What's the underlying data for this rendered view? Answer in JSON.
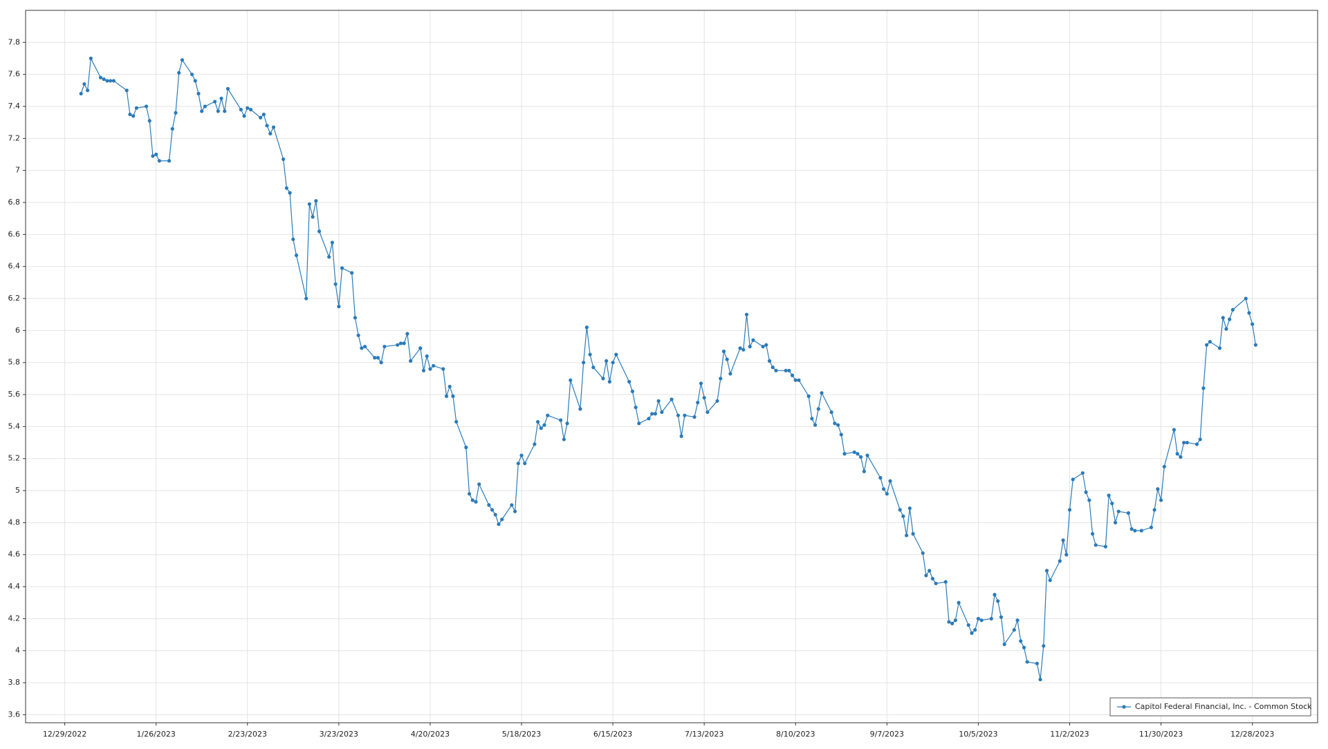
{
  "chart_data": {
    "type": "line",
    "x": [
      "1/3/2023",
      "1/4/2023",
      "1/5/2023",
      "1/6/2023",
      "1/9/2023",
      "1/10/2023",
      "1/11/2023",
      "1/12/2023",
      "1/13/2023",
      "1/17/2023",
      "1/18/2023",
      "1/19/2023",
      "1/20/2023",
      "1/23/2023",
      "1/24/2023",
      "1/25/2023",
      "1/26/2023",
      "1/27/2023",
      "1/30/2023",
      "1/31/2023",
      "2/1/2023",
      "2/2/2023",
      "2/3/2023",
      "2/6/2023",
      "2/7/2023",
      "2/8/2023",
      "2/9/2023",
      "2/10/2023",
      "2/13/2023",
      "2/14/2023",
      "2/15/2023",
      "2/16/2023",
      "2/17/2023",
      "2/21/2023",
      "2/22/2023",
      "2/23/2023",
      "2/24/2023",
      "2/27/2023",
      "2/28/2023",
      "3/1/2023",
      "3/2/2023",
      "3/3/2023",
      "3/6/2023",
      "3/7/2023",
      "3/8/2023",
      "3/9/2023",
      "3/10/2023",
      "3/13/2023",
      "3/14/2023",
      "3/15/2023",
      "3/16/2023",
      "3/17/2023",
      "3/20/2023",
      "3/21/2023",
      "3/22/2023",
      "3/23/2023",
      "3/24/2023",
      "3/27/2023",
      "3/28/2023",
      "3/29/2023",
      "3/30/2023",
      "3/31/2023",
      "4/3/2023",
      "4/4/2023",
      "4/5/2023",
      "4/6/2023",
      "4/10/2023",
      "4/11/2023",
      "4/12/2023",
      "4/13/2023",
      "4/14/2023",
      "4/17/2023",
      "4/18/2023",
      "4/19/2023",
      "4/20/2023",
      "4/21/2023",
      "4/24/2023",
      "4/25/2023",
      "4/26/2023",
      "4/27/2023",
      "4/28/2023",
      "5/1/2023",
      "5/2/2023",
      "5/3/2023",
      "5/4/2023",
      "5/5/2023",
      "5/8/2023",
      "5/9/2023",
      "5/10/2023",
      "5/11/2023",
      "5/12/2023",
      "5/15/2023",
      "5/16/2023",
      "5/17/2023",
      "5/18/2023",
      "5/19/2023",
      "5/22/2023",
      "5/23/2023",
      "5/24/2023",
      "5/25/2023",
      "5/26/2023",
      "5/30/2023",
      "5/31/2023",
      "6/1/2023",
      "6/2/2023",
      "6/5/2023",
      "6/6/2023",
      "6/7/2023",
      "6/8/2023",
      "6/9/2023",
      "6/12/2023",
      "6/13/2023",
      "6/14/2023",
      "6/15/2023",
      "6/16/2023",
      "6/20/2023",
      "6/21/2023",
      "6/22/2023",
      "6/23/2023",
      "6/26/2023",
      "6/27/2023",
      "6/28/2023",
      "6/29/2023",
      "6/30/2023",
      "7/3/2023",
      "7/5/2023",
      "7/6/2023",
      "7/7/2023",
      "7/10/2023",
      "7/11/2023",
      "7/12/2023",
      "7/13/2023",
      "7/14/2023",
      "7/17/2023",
      "7/18/2023",
      "7/19/2023",
      "7/20/2023",
      "7/21/2023",
      "7/24/2023",
      "7/25/2023",
      "7/26/2023",
      "7/27/2023",
      "7/28/2023",
      "7/31/2023",
      "8/1/2023",
      "8/2/2023",
      "8/3/2023",
      "8/4/2023",
      "8/7/2023",
      "8/8/2023",
      "8/9/2023",
      "8/10/2023",
      "8/11/2023",
      "8/14/2023",
      "8/15/2023",
      "8/16/2023",
      "8/17/2023",
      "8/18/2023",
      "8/21/2023",
      "8/22/2023",
      "8/23/2023",
      "8/24/2023",
      "8/25/2023",
      "8/28/2023",
      "8/29/2023",
      "8/30/2023",
      "8/31/2023",
      "9/1/2023",
      "9/5/2023",
      "9/6/2023",
      "9/7/2023",
      "9/8/2023",
      "9/11/2023",
      "9/12/2023",
      "9/13/2023",
      "9/14/2023",
      "9/15/2023",
      "9/18/2023",
      "9/19/2023",
      "9/20/2023",
      "9/21/2023",
      "9/22/2023",
      "9/25/2023",
      "9/26/2023",
      "9/27/2023",
      "9/28/2023",
      "9/29/2023",
      "10/2/2023",
      "10/3/2023",
      "10/4/2023",
      "10/5/2023",
      "10/6/2023",
      "10/9/2023",
      "10/10/2023",
      "10/11/2023",
      "10/12/2023",
      "10/13/2023",
      "10/16/2023",
      "10/17/2023",
      "10/18/2023",
      "10/19/2023",
      "10/20/2023",
      "10/23/2023",
      "10/24/2023",
      "10/25/2023",
      "10/26/2023",
      "10/27/2023",
      "10/30/2023",
      "10/31/2023",
      "11/1/2023",
      "11/2/2023",
      "11/3/2023",
      "11/6/2023",
      "11/7/2023",
      "11/8/2023",
      "11/9/2023",
      "11/10/2023",
      "11/13/2023",
      "11/14/2023",
      "11/15/2023",
      "11/16/2023",
      "11/17/2023",
      "11/20/2023",
      "11/21/2023",
      "11/22/2023",
      "11/24/2023",
      "11/27/2023",
      "11/28/2023",
      "11/29/2023",
      "11/30/2023",
      "12/1/2023",
      "12/4/2023",
      "12/5/2023",
      "12/6/2023",
      "12/7/2023",
      "12/8/2023",
      "12/11/2023",
      "12/12/2023",
      "12/13/2023",
      "12/14/2023",
      "12/15/2023",
      "12/18/2023",
      "12/19/2023",
      "12/20/2023",
      "12/21/2023",
      "12/22/2023",
      "12/26/2023",
      "12/27/2023",
      "12/28/2023",
      "12/29/2023"
    ],
    "series": [
      {
        "name": "Capitol Federal Financial, Inc. - Common Stock",
        "color": "#2a7ab9",
        "values": [
          7.48,
          7.54,
          7.5,
          7.7,
          7.58,
          7.57,
          7.56,
          7.56,
          7.56,
          7.5,
          7.35,
          7.34,
          7.39,
          7.4,
          7.31,
          7.09,
          7.1,
          7.06,
          7.06,
          7.26,
          7.36,
          7.61,
          7.69,
          7.6,
          7.56,
          7.48,
          7.37,
          7.4,
          7.43,
          7.37,
          7.45,
          7.37,
          7.51,
          7.38,
          7.34,
          7.39,
          7.38,
          7.33,
          7.35,
          7.28,
          7.23,
          7.27,
          7.07,
          6.89,
          6.86,
          6.57,
          6.47,
          6.2,
          6.79,
          6.71,
          6.81,
          6.62,
          6.46,
          6.55,
          6.29,
          6.15,
          6.39,
          6.36,
          6.08,
          5.97,
          5.89,
          5.9,
          5.83,
          5.83,
          5.8,
          5.9,
          5.91,
          5.92,
          5.92,
          5.98,
          5.81,
          5.89,
          5.75,
          5.84,
          5.76,
          5.78,
          5.76,
          5.59,
          5.65,
          5.59,
          5.43,
          5.27,
          4.98,
          4.94,
          4.93,
          5.04,
          4.91,
          4.88,
          4.85,
          4.79,
          4.82,
          4.91,
          4.87,
          5.17,
          5.22,
          5.17,
          5.29,
          5.43,
          5.39,
          5.41,
          5.47,
          5.44,
          5.32,
          5.42,
          5.69,
          5.51,
          5.8,
          6.02,
          5.85,
          5.77,
          5.7,
          5.81,
          5.68,
          5.8,
          5.85,
          5.68,
          5.62,
          5.52,
          5.42,
          5.45,
          5.48,
          5.48,
          5.56,
          5.49,
          5.57,
          5.47,
          5.34,
          5.47,
          5.46,
          5.55,
          5.67,
          5.58,
          5.49,
          5.56,
          5.7,
          5.87,
          5.82,
          5.73,
          5.89,
          5.88,
          6.1,
          5.9,
          5.94,
          5.9,
          5.91,
          5.81,
          5.77,
          5.75,
          5.75,
          5.75,
          5.72,
          5.69,
          5.69,
          5.59,
          5.45,
          5.41,
          5.51,
          5.61,
          5.49,
          5.42,
          5.41,
          5.35,
          5.23,
          5.24,
          5.23,
          5.21,
          5.12,
          5.22,
          5.08,
          5.01,
          4.98,
          5.06,
          4.88,
          4.84,
          4.72,
          4.89,
          4.73,
          4.61,
          4.47,
          4.5,
          4.45,
          4.42,
          4.43,
          4.18,
          4.17,
          4.19,
          4.3,
          4.16,
          4.11,
          4.13,
          4.2,
          4.19,
          4.2,
          4.35,
          4.31,
          4.21,
          4.04,
          4.13,
          4.19,
          4.06,
          4.02,
          3.93,
          3.92,
          3.82,
          4.03,
          4.5,
          4.44,
          4.56,
          4.69,
          4.6,
          4.88,
          5.07,
          5.11,
          4.99,
          4.94,
          4.73,
          4.66,
          4.65,
          4.97,
          4.92,
          4.8,
          4.87,
          4.86,
          4.76,
          4.75,
          4.75,
          4.77,
          4.88,
          5.01,
          4.94,
          5.15,
          5.38,
          5.23,
          5.21,
          5.3,
          5.3,
          5.29,
          5.32,
          5.64,
          5.91,
          5.93,
          5.89,
          6.08,
          6.01,
          6.07,
          6.13,
          6.2,
          6.11,
          6.04,
          5.91
        ]
      }
    ],
    "xlim": [
      "12/17/2022",
      "1/17/2024"
    ],
    "xticks": [
      "12/29/2022",
      "1/26/2023",
      "2/23/2023",
      "3/23/2023",
      "4/20/2023",
      "5/18/2023",
      "6/15/2023",
      "7/13/2023",
      "8/10/2023",
      "9/7/2023",
      "10/5/2023",
      "11/2/2023",
      "11/30/2023",
      "12/28/2023"
    ],
    "ylim": [
      3.55,
      8.0
    ],
    "yticks": [
      3.6,
      3.8,
      4,
      4.2,
      4.4,
      4.6,
      4.8,
      5,
      5.2,
      5.4,
      5.6,
      5.8,
      6,
      6.2,
      6.4,
      6.6,
      6.8,
      7,
      7.2,
      7.4,
      7.6,
      7.8
    ],
    "grid": true,
    "legend": "lower right",
    "markers": true
  }
}
